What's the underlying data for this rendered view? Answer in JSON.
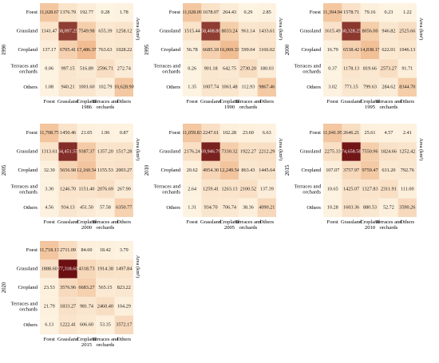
{
  "categories": [
    "Foest",
    "Grassland",
    "Cropland",
    "Terraces and orchards",
    "Others"
  ],
  "side_label": "Area (km²)",
  "colors": {
    "low": "#fdf3e1",
    "mid": "#f0b98c",
    "high": "#6b0f12",
    "light_text": "#ffffff",
    "dark_text": "#1a1a1a"
  },
  "chart_data": [
    {
      "type": "heatmap",
      "row_year": "1990",
      "col_year": "1986",
      "rows": [
        "Foest",
        "Grassland",
        "Cropland",
        "Terraces and orchards",
        "Others"
      ],
      "cols": [
        "Foest",
        "Grassland",
        "Cropland",
        "Terraces and orchards",
        "Others"
      ],
      "values": [
        [
          "11,028.67",
          "1376.79",
          "192.77",
          "0.28",
          "1.78"
        ],
        [
          "1141.47",
          "58,097.25",
          "7549.98",
          "655.39",
          "1258.12"
        ],
        [
          "137.17",
          "6705.41",
          "17,486.37",
          "763.63",
          "1028.22"
        ],
        [
          "0.06",
          "997.15",
          "516.89",
          "2596.71",
          "272.74"
        ],
        [
          "1.08",
          "940.21",
          "1001.60",
          "102.79",
          "10,628.90"
        ]
      ]
    },
    {
      "type": "heatmap",
      "row_year": "1995",
      "col_year": "1990",
      "rows": [
        "Foest",
        "Grassland",
        "Cropland",
        "Terraces and orchards",
        "Others"
      ],
      "cols": [
        "Foest",
        "Grassland",
        "Cropland",
        "Terraces and orchards",
        "Others"
      ],
      "values": [
        [
          "11,028.09",
          "1678.07",
          "264.43",
          "0.29",
          "2.85"
        ],
        [
          "1515.44",
          "58,408.80",
          "8033.24",
          "961.14",
          "1433.61"
        ],
        [
          "56.78",
          "6685.18",
          "16,069.33",
          "599.04",
          "1166.02"
        ],
        [
          "0.26",
          "901.18",
          "642.75",
          "2730.20",
          "180.03"
        ],
        [
          "1.35",
          "1007.74",
          "1061.48",
          "112.93",
          "9867.46"
        ]
      ]
    },
    {
      "type": "heatmap",
      "row_year": "2000",
      "col_year": "1995",
      "rows": [
        "Foest",
        "Grassland",
        "Cropland",
        "Terraces and orchards",
        "Others"
      ],
      "cols": [
        "Foest",
        "Grassland",
        "Cropland",
        "Terraces and orchards",
        "Others"
      ],
      "values": [
        [
          "11,394.94",
          "1578.71",
          "79.16",
          "0.23",
          "1.22"
        ],
        [
          "1615.49",
          "60,328.25",
          "8056.00",
          "946.82",
          "2525.66"
        ],
        [
          "16.79",
          "6538.42",
          "14,838.17",
          "622.01",
          "1046.13"
        ],
        [
          "0.37",
          "1178.13",
          "819.66",
          "2573.27",
          "91.71"
        ],
        [
          "3.02",
          "771.15",
          "799.63",
          "284.62",
          "8344.70"
        ]
      ]
    },
    {
      "type": "heatmap",
      "row_year": "2005",
      "col_year": "2000",
      "rows": [
        "Foest",
        "Grassland",
        "Cropland",
        "Terraces and orchards",
        "Others"
      ],
      "cols": [
        "Foest",
        "Grassland",
        "Cropland",
        "Terraces and orchards",
        "Others"
      ],
      "values": [
        [
          "11,708.75",
          "1450.46",
          "21.05",
          "1.96",
          "0.87"
        ],
        [
          "1313.61",
          "64,451.55",
          "9387.37",
          "1357.20",
          "1517.28"
        ],
        [
          "32.30",
          "5656.98",
          "12,160.54",
          "1155.53",
          "2003.27"
        ],
        [
          "3.30",
          "1246.70",
          "1151.40",
          "2076.69",
          "267.90"
        ],
        [
          "4.56",
          "934.13",
          "451.50",
          "57.58",
          "6350.77"
        ]
      ]
    },
    {
      "type": "heatmap",
      "row_year": "2010",
      "col_year": "2005",
      "rows": [
        "Foest",
        "Grassland",
        "Cropland",
        "Terraces and orchards",
        "Others"
      ],
      "cols": [
        "Foest",
        "Grassland",
        "Cropland",
        "Terraces and orchards",
        "Others"
      ],
      "values": [
        [
          "11,059.83",
          "2247.61",
          "102.28",
          "23.60",
          "6.63"
        ],
        [
          "2176.24",
          "69,946.79",
          "7330.32",
          "1922.27",
          "2212.29"
        ],
        [
          "20.62",
          "4954.30",
          "12,249.54",
          "863.43",
          "1445.64"
        ],
        [
          "2.64",
          "1259.41",
          "1263.13",
          "2100.52",
          "137.39"
        ],
        [
          "1.31",
          "934.70",
          "706.74",
          "38.36",
          "4090.21"
        ]
      ]
    },
    {
      "type": "heatmap",
      "row_year": "2015",
      "col_year": "2010",
      "rows": [
        "Foest",
        "Grassland",
        "Cropland",
        "Terraces and orchards",
        "Others"
      ],
      "cols": [
        "Foest",
        "Grassland",
        "Cropland",
        "Terraces and orchards",
        "Others"
      ],
      "values": [
        [
          "11,041.95",
          "2646.21",
          "25.61",
          "4.57",
          "2.41"
        ],
        [
          "2275.33",
          "74,658.58",
          "7550.96",
          "1824.66",
          "1252.42"
        ],
        [
          "107.07",
          "3757.97",
          "9759.47",
          "631.20",
          "792.76"
        ],
        [
          "10.65",
          "1425.07",
          "1327.83",
          "2311.91",
          "111.00"
        ],
        [
          "10.28",
          "1603.36",
          "880.53",
          "52.72",
          "3590.26"
        ]
      ]
    },
    {
      "type": "heatmap",
      "row_year": "2020",
      "col_year": "2015",
      "rows": [
        "Foest",
        "Grassland",
        "Cropland",
        "Terraces and orchards",
        "Others"
      ],
      "cols": [
        "Foest",
        "Grassland",
        "Cropland",
        "Terraces and orchards",
        "Others"
      ],
      "values": [
        [
          "11,718.13",
          "2711.09",
          "84.60",
          "18.42",
          "3.79"
        ],
        [
          "1888.60",
          "77,318.60",
          "4318.73",
          "1914.38",
          "1497.84"
        ],
        [
          "23.53",
          "3576.96",
          "6683.27",
          "565.15",
          "823.22"
        ],
        [
          "21.79",
          "1833.27",
          "981.74",
          "2460.40",
          "104.29"
        ],
        [
          "6.13",
          "1222.41",
          "606.60",
          "53.35",
          "3572.17"
        ]
      ]
    }
  ]
}
